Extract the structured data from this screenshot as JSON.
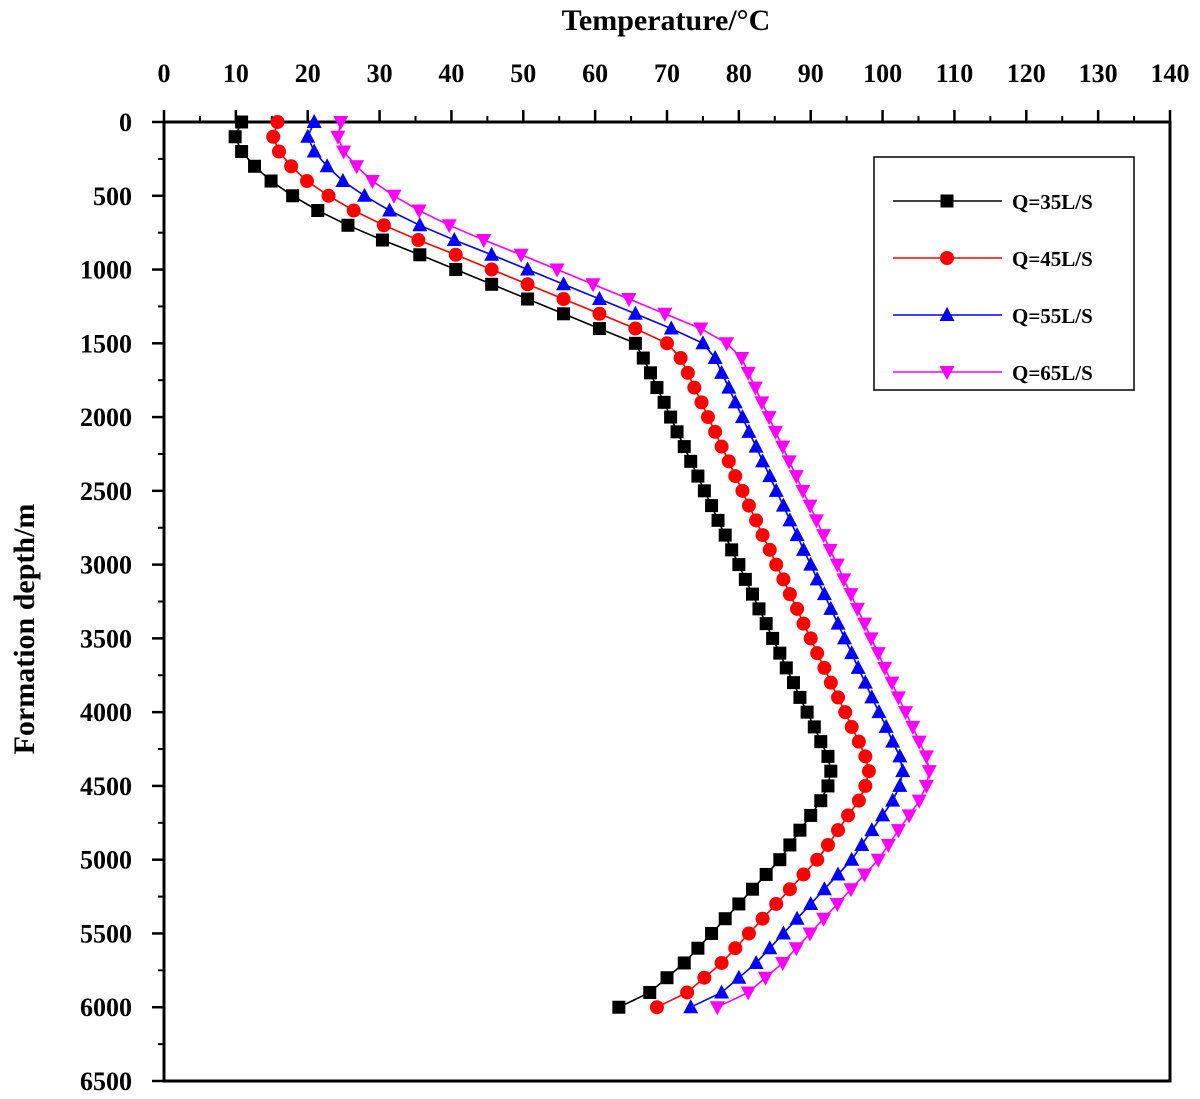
{
  "chart_data": {
    "type": "line",
    "xlabel": "Temperature/°C",
    "ylabel": "Formation depth/m",
    "xlim": [
      0,
      140
    ],
    "ylim": [
      0,
      6500
    ],
    "y_inverted": true,
    "x_axis_position": "top",
    "x_ticks": [
      0,
      10,
      20,
      30,
      40,
      50,
      60,
      70,
      80,
      90,
      100,
      110,
      120,
      130,
      140
    ],
    "y_ticks": [
      0,
      500,
      1000,
      1500,
      2000,
      2500,
      3000,
      3500,
      4000,
      4500,
      5000,
      5500,
      6000,
      6500
    ],
    "grid": false,
    "legend_position": "top-right",
    "depth": [
      0,
      100,
      200,
      300,
      400,
      500,
      600,
      700,
      800,
      900,
      1000,
      1100,
      1200,
      1300,
      1400,
      1500,
      1600,
      1700,
      1800,
      1900,
      2000,
      2100,
      2200,
      2300,
      2400,
      2500,
      2600,
      2700,
      2800,
      2900,
      3000,
      3100,
      3200,
      3300,
      3400,
      3500,
      3600,
      3700,
      3800,
      3900,
      4000,
      4100,
      4200,
      4300,
      4400,
      4500,
      4600,
      4700,
      4800,
      4900,
      5000,
      5100,
      5200,
      5300,
      5400,
      5500,
      5600,
      5700,
      5800,
      5900,
      6000
    ],
    "series": [
      {
        "name": "Q=35L/S",
        "color": "#000000",
        "marker": "square",
        "values": [
          10.8,
          9.9,
          10.8,
          12.6,
          14.9,
          17.9,
          21.4,
          25.6,
          30.4,
          35.6,
          40.6,
          45.6,
          50.6,
          55.6,
          60.6,
          65.6,
          66.7,
          67.7,
          68.6,
          69.6,
          70.5,
          71.4,
          72.4,
          73.3,
          74.3,
          75.2,
          76.2,
          77.1,
          78.1,
          79.0,
          80.0,
          80.9,
          81.9,
          82.8,
          83.8,
          84.7,
          85.7,
          86.6,
          87.6,
          88.5,
          89.5,
          90.5,
          91.4,
          92.4,
          92.8,
          92.4,
          91.4,
          90.0,
          88.5,
          87.1,
          85.7,
          83.8,
          81.9,
          80.0,
          78.1,
          76.2,
          74.3,
          72.4,
          70.0,
          67.6,
          63.3
        ]
      },
      {
        "name": "Q=45L/S",
        "color": "#ff0000",
        "marker": "circle",
        "values": [
          15.8,
          15.2,
          16.0,
          17.7,
          19.9,
          22.9,
          26.4,
          30.6,
          35.4,
          40.6,
          45.6,
          50.6,
          55.6,
          60.6,
          65.6,
          70.0,
          71.9,
          72.9,
          73.8,
          74.8,
          75.7,
          76.7,
          77.6,
          78.6,
          79.5,
          80.5,
          81.4,
          82.4,
          83.3,
          84.3,
          85.2,
          86.2,
          87.1,
          88.1,
          89.0,
          90.0,
          90.9,
          91.9,
          92.8,
          93.8,
          94.8,
          95.7,
          96.7,
          97.6,
          98.1,
          97.6,
          96.7,
          95.2,
          93.8,
          92.4,
          90.9,
          89.0,
          87.1,
          85.2,
          83.3,
          81.4,
          79.5,
          77.6,
          75.2,
          72.8,
          68.6
        ]
      },
      {
        "name": "Q=55L/S",
        "color": "#0000ff",
        "marker": "triangle-up",
        "values": [
          20.9,
          20.0,
          20.9,
          22.7,
          24.9,
          27.9,
          31.4,
          35.6,
          40.4,
          45.6,
          50.6,
          55.6,
          60.6,
          65.6,
          70.6,
          75.0,
          76.7,
          77.6,
          78.6,
          79.5,
          80.5,
          81.4,
          82.4,
          83.3,
          84.3,
          85.2,
          86.2,
          87.1,
          88.1,
          89.0,
          90.0,
          90.9,
          91.9,
          92.8,
          93.8,
          94.7,
          95.7,
          96.6,
          97.6,
          98.5,
          99.5,
          100.5,
          101.4,
          102.4,
          102.8,
          102.4,
          101.4,
          100.0,
          98.5,
          97.1,
          95.7,
          93.8,
          91.9,
          90.0,
          88.1,
          86.2,
          84.3,
          82.4,
          80.0,
          77.6,
          73.3
        ]
      },
      {
        "name": "Q=65L/S",
        "color": "#ff00ff",
        "marker": "triangle-down",
        "values": [
          24.6,
          24.2,
          25.0,
          26.8,
          29.0,
          32.0,
          35.5,
          39.7,
          44.5,
          49.7,
          54.7,
          59.7,
          64.7,
          69.7,
          74.7,
          78.3,
          80.4,
          81.3,
          82.3,
          83.2,
          84.2,
          85.1,
          86.1,
          87.0,
          88.0,
          88.9,
          89.9,
          90.8,
          91.8,
          92.7,
          93.7,
          94.6,
          95.6,
          96.5,
          97.5,
          98.4,
          99.4,
          100.3,
          101.3,
          102.2,
          103.2,
          104.2,
          105.1,
          106.1,
          106.5,
          106.1,
          105.1,
          103.7,
          102.2,
          100.8,
          99.4,
          97.5,
          95.6,
          93.7,
          91.8,
          89.9,
          88.0,
          86.1,
          83.7,
          81.3,
          77.0
        ]
      }
    ]
  }
}
